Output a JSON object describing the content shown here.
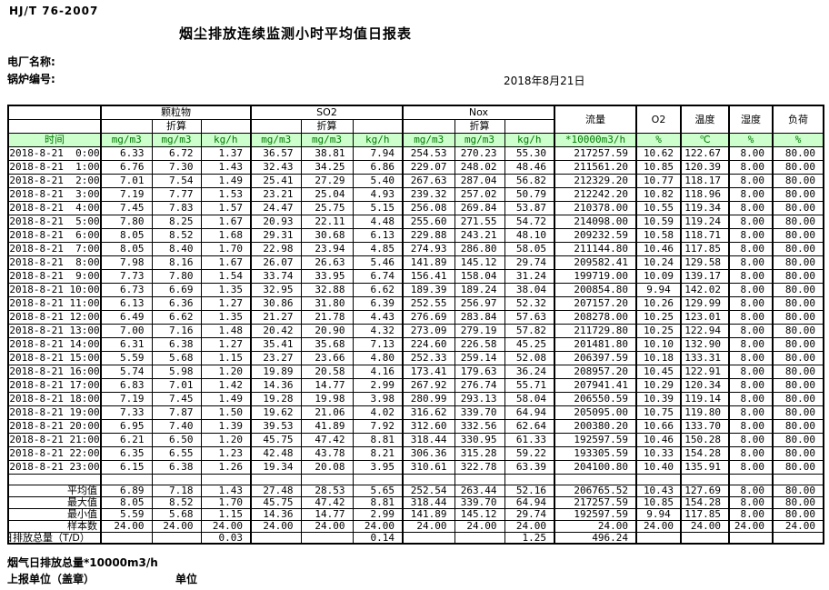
{
  "meta": {
    "standard_code": "HJ/T  76-2007",
    "title": "烟尘排放连续监测小时平均值日报表",
    "plant_label": "电厂名称:",
    "boiler_label": "锅炉编号:",
    "date": "2018年8月21日"
  },
  "colors": {
    "header_row_bg": "#ccffcc",
    "header_row_text": "#007700",
    "border": "#000000"
  },
  "table": {
    "time_label": "时间",
    "conv_label": "折算",
    "group_pm": "颗粒物",
    "group_so2": "SO2",
    "group_nox": "Nox",
    "flow_label": "流量",
    "o2_label": "O2",
    "temp_label": "温度",
    "humidity_label": "湿度",
    "load_label": "负荷",
    "units": [
      "mg/m3",
      "mg/m3",
      "kg/h",
      "mg/m3",
      "mg/m3",
      "kg/h",
      "mg/m3",
      "mg/m3",
      "kg/h",
      "*10000m3/h",
      "%",
      "℃",
      "%",
      "%"
    ],
    "rows": [
      {
        "time": "2018-8-21  0:00",
        "values": [
          "6.33",
          "6.72",
          "1.37",
          "36.57",
          "38.81",
          "7.94",
          "254.53",
          "270.23",
          "55.30",
          "217257.59",
          "10.62",
          "122.67",
          "8.00",
          "80.00"
        ]
      },
      {
        "time": "2018-8-21  1:00",
        "values": [
          "6.76",
          "7.30",
          "1.43",
          "32.43",
          "34.25",
          "6.86",
          "229.07",
          "248.02",
          "48.46",
          "211561.20",
          "10.85",
          "120.39",
          "8.00",
          "80.00"
        ]
      },
      {
        "time": "2018-8-21  2:00",
        "values": [
          "7.01",
          "7.54",
          "1.49",
          "25.41",
          "27.29",
          "5.40",
          "267.63",
          "287.04",
          "56.82",
          "212329.20",
          "10.77",
          "118.17",
          "8.00",
          "80.00"
        ]
      },
      {
        "time": "2018-8-21  3:00",
        "values": [
          "7.19",
          "7.77",
          "1.53",
          "23.21",
          "25.04",
          "4.93",
          "239.32",
          "257.02",
          "50.79",
          "212242.20",
          "10.82",
          "118.96",
          "8.00",
          "80.00"
        ]
      },
      {
        "time": "2018-8-21  4:00",
        "values": [
          "7.45",
          "7.83",
          "1.57",
          "24.47",
          "25.75",
          "5.15",
          "256.08",
          "269.84",
          "53.87",
          "210378.00",
          "10.55",
          "119.34",
          "8.00",
          "80.00"
        ]
      },
      {
        "time": "2018-8-21  5:00",
        "values": [
          "7.80",
          "8.25",
          "1.67",
          "20.93",
          "22.11",
          "4.48",
          "255.60",
          "271.55",
          "54.72",
          "214098.00",
          "10.59",
          "119.24",
          "8.00",
          "80.00"
        ]
      },
      {
        "time": "2018-8-21  6:00",
        "values": [
          "8.05",
          "8.52",
          "1.68",
          "29.31",
          "30.68",
          "6.13",
          "229.88",
          "243.21",
          "48.10",
          "209232.59",
          "10.58",
          "118.71",
          "8.00",
          "80.00"
        ]
      },
      {
        "time": "2018-8-21  7:00",
        "values": [
          "8.05",
          "8.40",
          "1.70",
          "22.98",
          "23.94",
          "4.85",
          "274.93",
          "286.80",
          "58.05",
          "211144.80",
          "10.46",
          "117.85",
          "8.00",
          "80.00"
        ]
      },
      {
        "time": "2018-8-21  8:00",
        "values": [
          "7.98",
          "8.16",
          "1.67",
          "26.07",
          "26.63",
          "5.46",
          "141.89",
          "145.12",
          "29.74",
          "209582.41",
          "10.24",
          "129.58",
          "8.00",
          "80.00"
        ]
      },
      {
        "time": "2018-8-21  9:00",
        "values": [
          "7.73",
          "7.80",
          "1.54",
          "33.74",
          "33.95",
          "6.74",
          "156.41",
          "158.04",
          "31.24",
          "199719.00",
          "10.09",
          "139.17",
          "8.00",
          "80.00"
        ]
      },
      {
        "time": "2018-8-21 10:00",
        "values": [
          "6.73",
          "6.69",
          "1.35",
          "32.95",
          "32.88",
          "6.62",
          "189.39",
          "189.24",
          "38.04",
          "200854.80",
          "9.94",
          "142.02",
          "8.00",
          "80.00"
        ]
      },
      {
        "time": "2018-8-21 11:00",
        "values": [
          "6.13",
          "6.36",
          "1.27",
          "30.86",
          "31.80",
          "6.39",
          "252.55",
          "256.97",
          "52.32",
          "207157.20",
          "10.26",
          "129.99",
          "8.00",
          "80.00"
        ]
      },
      {
        "time": "2018-8-21 12:00",
        "values": [
          "6.49",
          "6.62",
          "1.35",
          "21.27",
          "21.78",
          "4.43",
          "276.69",
          "283.84",
          "57.63",
          "208278.00",
          "10.25",
          "123.01",
          "8.00",
          "80.00"
        ]
      },
      {
        "time": "2018-8-21 13:00",
        "values": [
          "7.00",
          "7.16",
          "1.48",
          "20.42",
          "20.90",
          "4.32",
          "273.09",
          "279.19",
          "57.82",
          "211729.80",
          "10.25",
          "122.94",
          "8.00",
          "80.00"
        ]
      },
      {
        "time": "2018-8-21 14:00",
        "values": [
          "6.31",
          "6.38",
          "1.27",
          "35.41",
          "35.68",
          "7.13",
          "224.60",
          "226.58",
          "45.25",
          "201481.80",
          "10.10",
          "132.90",
          "8.00",
          "80.00"
        ]
      },
      {
        "time": "2018-8-21 15:00",
        "values": [
          "5.59",
          "5.68",
          "1.15",
          "23.27",
          "23.66",
          "4.80",
          "252.33",
          "259.14",
          "52.08",
          "206397.59",
          "10.18",
          "133.31",
          "8.00",
          "80.00"
        ]
      },
      {
        "time": "2018-8-21 16:00",
        "values": [
          "5.74",
          "5.98",
          "1.20",
          "19.89",
          "20.58",
          "4.16",
          "173.41",
          "179.63",
          "36.24",
          "208957.20",
          "10.45",
          "122.91",
          "8.00",
          "80.00"
        ]
      },
      {
        "time": "2018-8-21 17:00",
        "values": [
          "6.83",
          "7.01",
          "1.42",
          "14.36",
          "14.77",
          "2.99",
          "267.92",
          "276.74",
          "55.71",
          "207941.41",
          "10.29",
          "120.34",
          "8.00",
          "80.00"
        ]
      },
      {
        "time": "2018-8-21 18:00",
        "values": [
          "7.19",
          "7.45",
          "1.49",
          "19.28",
          "19.98",
          "3.98",
          "280.99",
          "293.13",
          "58.04",
          "206550.59",
          "10.39",
          "119.14",
          "8.00",
          "80.00"
        ]
      },
      {
        "time": "2018-8-21 19:00",
        "values": [
          "7.33",
          "7.87",
          "1.50",
          "19.62",
          "21.06",
          "4.02",
          "316.62",
          "339.70",
          "64.94",
          "205095.00",
          "10.75",
          "119.80",
          "8.00",
          "80.00"
        ]
      },
      {
        "time": "2018-8-21 20:00",
        "values": [
          "6.95",
          "7.40",
          "1.39",
          "39.53",
          "41.89",
          "7.92",
          "312.60",
          "332.56",
          "62.64",
          "200380.20",
          "10.66",
          "133.70",
          "8.00",
          "80.00"
        ]
      },
      {
        "time": "2018-8-21 21:00",
        "values": [
          "6.21",
          "6.50",
          "1.20",
          "45.75",
          "47.42",
          "8.81",
          "318.44",
          "330.95",
          "61.33",
          "192597.59",
          "10.46",
          "150.28",
          "8.00",
          "80.00"
        ]
      },
      {
        "time": "2018-8-21 22:00",
        "values": [
          "6.35",
          "6.55",
          "1.23",
          "42.48",
          "43.78",
          "8.21",
          "306.36",
          "315.28",
          "59.22",
          "193305.59",
          "10.33",
          "154.28",
          "8.00",
          "80.00"
        ]
      },
      {
        "time": "2018-8-21 23:00",
        "values": [
          "6.15",
          "6.38",
          "1.26",
          "19.34",
          "20.08",
          "3.95",
          "310.61",
          "322.78",
          "63.39",
          "204100.80",
          "10.40",
          "135.91",
          "8.00",
          "80.00"
        ]
      }
    ],
    "summary": [
      {
        "label": "平均值",
        "values": [
          "6.89",
          "7.18",
          "1.43",
          "27.48",
          "28.53",
          "5.65",
          "252.54",
          "263.44",
          "52.16",
          "206765.52",
          "10.43",
          "127.69",
          "8.00",
          "80.00"
        ]
      },
      {
        "label": "最大值",
        "values": [
          "8.05",
          "8.52",
          "1.70",
          "45.75",
          "47.42",
          "8.81",
          "318.44",
          "339.70",
          "64.94",
          "217257.59",
          "10.85",
          "154.28",
          "8.00",
          "80.00"
        ]
      },
      {
        "label": "最小值",
        "values": [
          "5.59",
          "5.68",
          "1.15",
          "14.36",
          "14.77",
          "2.99",
          "141.89",
          "145.12",
          "29.74",
          "192597.59",
          "9.94",
          "117.85",
          "8.00",
          "80.00"
        ]
      },
      {
        "label": "样本数",
        "values": [
          "24.00",
          "24.00",
          "24.00",
          "24.00",
          "24.00",
          "24.00",
          "24.00",
          "24.00",
          "24.00",
          "24.00",
          "24.00",
          "24.00",
          "24.00",
          "24.00"
        ]
      },
      {
        "label": "日排放总量（T/D）",
        "values": [
          "",
          "",
          "0.03",
          "",
          "",
          "0.14",
          "",
          "",
          "1.25",
          "496.24",
          "",
          "",
          "",
          ""
        ]
      }
    ]
  },
  "footer": {
    "flue_gas_total_label": "烟气日排放总量*10000m3/h",
    "reporting_unit_label": "上报单位（盖章）",
    "unit_label": "单位"
  }
}
